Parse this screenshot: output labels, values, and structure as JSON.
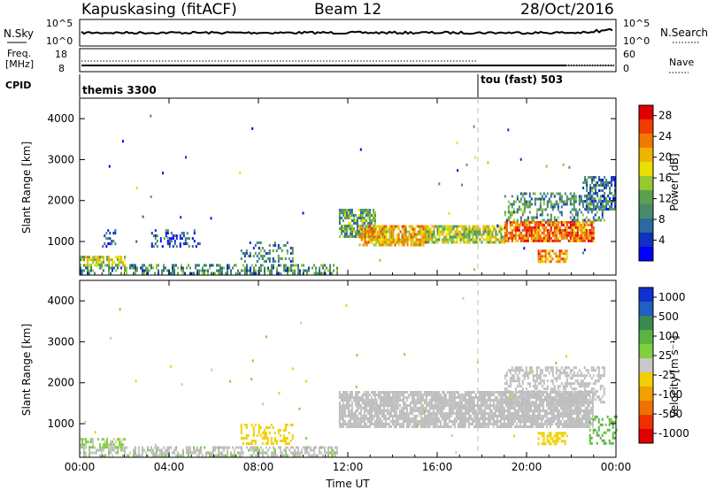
{
  "header": {
    "radar": "Kapuskasing (fitACF)",
    "beam": "Beam 12",
    "date": "28/Oct/2016"
  },
  "aux": {
    "nsky_label": "N.Sky",
    "nsky_ticks": [
      "10^5",
      "10^0"
    ],
    "nsearch_label": "N.Search",
    "nsearch_ticks": [
      "10^5",
      "10^0"
    ],
    "freq_label": "Freq.",
    "freq_unit": "[MHz]",
    "freq_ticks": [
      "18",
      "8"
    ],
    "nave_label": "Nave",
    "nave_ticks": [
      "60",
      "0"
    ],
    "cpid_label": "CPID",
    "cpid_modes": [
      {
        "label": "themis 3300",
        "start_hour": 0
      },
      {
        "label": "tou (fast) 503",
        "start_hour": 18
      }
    ]
  },
  "colors": {
    "power_scale": [
      "#0000ff",
      "#1030c0",
      "#2a6aa0",
      "#4a8a6a",
      "#5aa050",
      "#96c832",
      "#e8e000",
      "#f0b400",
      "#f07800",
      "#f03c00",
      "#e00000"
    ],
    "velocity_scale": [
      "#1030d0",
      "#2060c0",
      "#3c8a50",
      "#5ab440",
      "#80d040",
      "#c8c8c8",
      "#f0d000",
      "#f0a000",
      "#f07000",
      "#f03000",
      "#e00000"
    ],
    "ground_scatter": "#bdbdbd"
  },
  "chart_data": [
    {
      "type": "heatmap",
      "name": "power-panel",
      "xlabel": "Time UT",
      "ylabel": "Slant Range [km]",
      "xlim": [
        0,
        24
      ],
      "ylim": [
        180,
        4500
      ],
      "x_ticks": [
        "00:00",
        "04:00",
        "08:00",
        "12:00",
        "16:00",
        "20:00",
        "00:00"
      ],
      "y_ticks": [
        "1000",
        "2000",
        "3000",
        "4000"
      ],
      "colorbar": {
        "label": "Power [dB]",
        "ticks": [
          "4",
          "8",
          "12",
          "16",
          "20",
          "24",
          "28"
        ],
        "range": [
          0,
          30
        ]
      },
      "regions": [
        {
          "t0": 0.0,
          "t1": 11.5,
          "r0": 200,
          "r1": 450,
          "value": 10,
          "density": 0.55
        },
        {
          "t0": 0.0,
          "t1": 2.0,
          "r0": 450,
          "r1": 650,
          "value": 16,
          "density": 0.6
        },
        {
          "t0": 1.0,
          "t1": 1.6,
          "r0": 900,
          "r1": 1300,
          "value": 6,
          "density": 0.35
        },
        {
          "t0": 3.2,
          "t1": 5.4,
          "r0": 900,
          "r1": 1300,
          "value": 6,
          "density": 0.3
        },
        {
          "t0": 7.2,
          "t1": 9.5,
          "r0": 500,
          "r1": 1000,
          "value": 8,
          "density": 0.35
        },
        {
          "t0": 11.6,
          "t1": 13.2,
          "r0": 1100,
          "r1": 1800,
          "value": 12,
          "density": 0.75
        },
        {
          "t0": 12.5,
          "t1": 15.5,
          "r0": 900,
          "r1": 1400,
          "value": 20,
          "density": 0.8
        },
        {
          "t0": 15.5,
          "t1": 19.0,
          "r0": 1000,
          "r1": 1400,
          "value": 16,
          "density": 0.8
        },
        {
          "t0": 19.0,
          "t1": 23.0,
          "r0": 1000,
          "r1": 1500,
          "value": 24,
          "density": 0.85
        },
        {
          "t0": 19.0,
          "t1": 23.5,
          "r0": 1500,
          "r1": 2200,
          "value": 10,
          "density": 0.45
        },
        {
          "t0": 20.5,
          "t1": 21.8,
          "r0": 500,
          "r1": 800,
          "value": 22,
          "density": 0.7
        },
        {
          "t0": 22.5,
          "t1": 24.0,
          "r0": 1800,
          "r1": 2600,
          "value": 8,
          "density": 0.6
        }
      ]
    },
    {
      "type": "heatmap",
      "name": "velocity-panel",
      "xlabel": "Time UT",
      "ylabel": "Slant Range [km]",
      "xlim": [
        0,
        24
      ],
      "ylim": [
        180,
        4500
      ],
      "x_ticks": [
        "00:00",
        "04:00",
        "08:00",
        "12:00",
        "16:00",
        "20:00",
        "00:00"
      ],
      "y_ticks": [
        "1000",
        "2000",
        "3000",
        "4000"
      ],
      "colorbar": {
        "label": "Velocity [m s⁻¹]",
        "ticks": [
          "1000",
          "500",
          "100",
          "25",
          "-25",
          "-100",
          "-500",
          "-1000"
        ],
        "range": [
          -1000,
          1000
        ]
      },
      "regions": [
        {
          "t0": 0.0,
          "t1": 11.5,
          "r0": 200,
          "r1": 450,
          "value": 50,
          "density": 0.55
        },
        {
          "t0": 0.0,
          "t1": 2.0,
          "r0": 450,
          "r1": 650,
          "value": 120,
          "density": 0.6
        },
        {
          "t0": 7.2,
          "t1": 9.5,
          "r0": 500,
          "r1": 1000,
          "value": -150,
          "density": 0.35
        },
        {
          "t0": 11.6,
          "t1": 23.0,
          "r0": 900,
          "r1": 1800,
          "value": 0,
          "density": 0.85
        },
        {
          "t0": 19.0,
          "t1": 23.5,
          "r0": 1500,
          "r1": 2400,
          "value": 0,
          "density": 0.5
        },
        {
          "t0": 20.5,
          "t1": 21.8,
          "r0": 500,
          "r1": 800,
          "value": -200,
          "density": 0.6
        },
        {
          "t0": 22.8,
          "t1": 24.0,
          "r0": 500,
          "r1": 1200,
          "value": 300,
          "density": 0.4
        }
      ]
    }
  ]
}
